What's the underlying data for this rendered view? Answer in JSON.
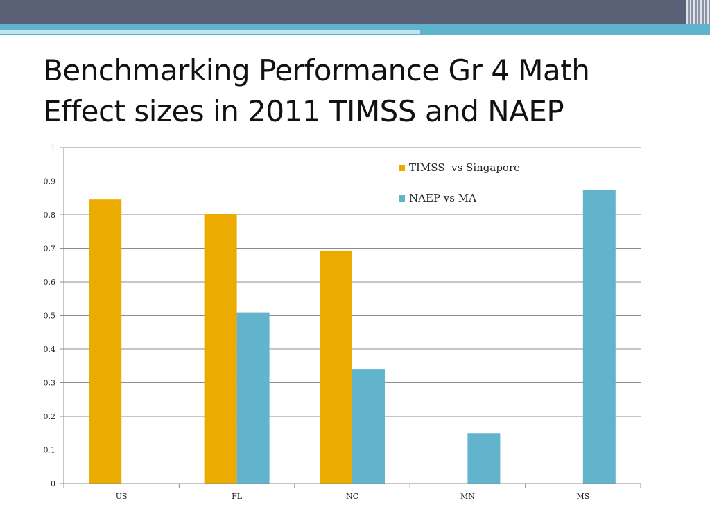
{
  "title": {
    "line1": "Benchmarking Performance Gr 4 Math",
    "line2": "Effect sizes in 2011 TIMSS and NAEP"
  },
  "chart_data": {
    "type": "bar",
    "categories": [
      "US",
      "FL",
      "NC",
      "MN",
      "MS"
    ],
    "series": [
      {
        "name": "TIMSS  vs Singapore",
        "color": "#ebab00",
        "values": [
          0.845,
          0.802,
          0.693,
          null,
          null
        ]
      },
      {
        "name": "NAEP vs MA",
        "color": "#61b4cc",
        "values": [
          null,
          0.508,
          0.34,
          0.15,
          0.873
        ]
      }
    ],
    "yticks": [
      "0",
      "0.1",
      "0.2",
      "0.3",
      "0.4",
      "0.5",
      "0.6",
      "0.7",
      "0.8",
      "0.9",
      "1"
    ],
    "ylim": [
      0,
      1
    ],
    "grid": true,
    "legend_position": "top-right"
  }
}
